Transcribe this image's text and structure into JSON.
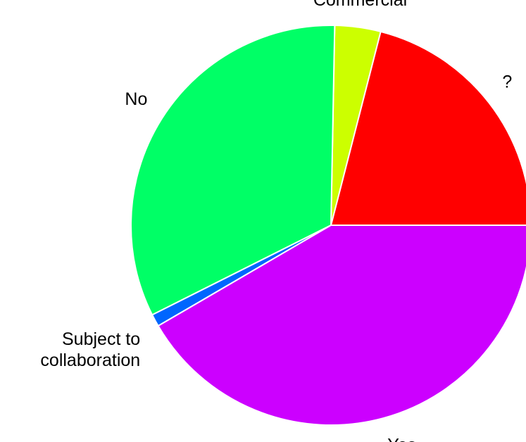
{
  "chart_data": {
    "type": "pie",
    "title": "",
    "start_angle_deg": 0,
    "direction": "counterclockwise",
    "legend": "none",
    "slices": [
      {
        "label": "?",
        "value": 21.0,
        "color": "#ff0000"
      },
      {
        "label": "Commercial",
        "value": 3.7,
        "color": "#ccff00"
      },
      {
        "label": "No",
        "value": 32.7,
        "color": "#00ff66"
      },
      {
        "label": "Subject to collaboration",
        "label_lines": [
          "Subject to",
          "collaboration"
        ],
        "value": 1.0,
        "color": "#0066ff"
      },
      {
        "label": "Yes",
        "value": 41.6,
        "color": "#cc00ff"
      }
    ]
  }
}
